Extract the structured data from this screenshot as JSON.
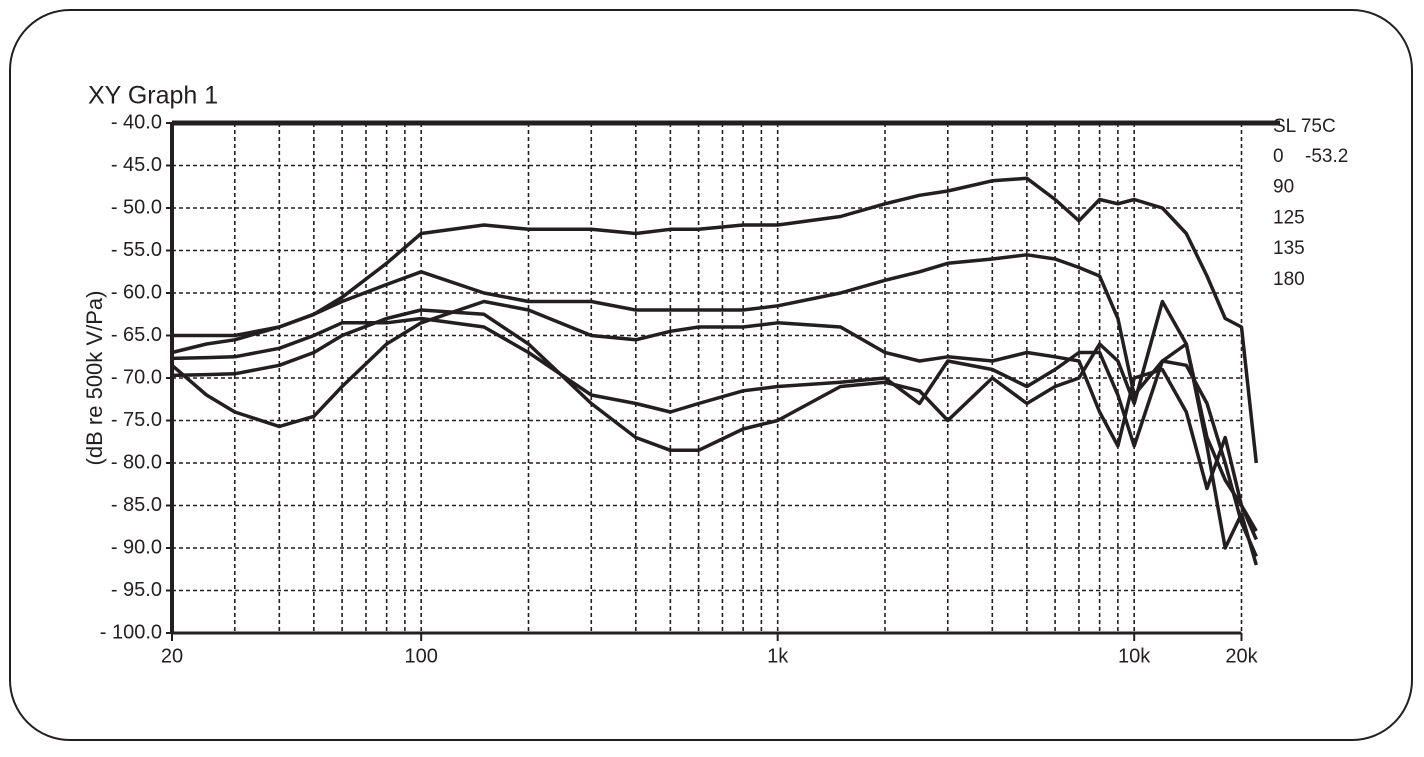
{
  "chart_data": {
    "type": "line",
    "title": "XY Graph 1",
    "y_label": "(dB re 500k V/Pa)",
    "legend_title": "SL 75C",
    "reference_level": -53.2,
    "x_scale": "log",
    "grid": true,
    "legend_position": "right",
    "xlim": [
      20,
      24000
    ],
    "ylim": [
      -100,
      -40
    ],
    "xticks": [
      20,
      100,
      {
        "value": 1000,
        "label": "1k"
      },
      {
        "value": 10000,
        "label": "10k"
      },
      {
        "value": 20000,
        "label": "20k"
      }
    ],
    "yticks": [
      {
        "value": -40,
        "label": "- 40.0"
      },
      {
        "value": -45,
        "label": "- 45.0"
      },
      {
        "value": -50,
        "label": "- 50.0"
      },
      {
        "value": -55,
        "label": "- 55.0"
      },
      {
        "value": -60,
        "label": "- 60.0"
      },
      {
        "value": -65,
        "label": "- 65.0"
      },
      {
        "value": -70,
        "label": "- 70.0"
      },
      {
        "value": -75,
        "label": "- 75.0"
      },
      {
        "value": -80,
        "label": "- 80.0"
      },
      {
        "value": -85,
        "label": "- 85.0"
      },
      {
        "value": -90,
        "label": "- 90.0"
      },
      {
        "value": -95,
        "label": "- 95.0"
      },
      {
        "value": -100,
        "label": "- 100.0"
      }
    ],
    "x": [
      20,
      25,
      30,
      40,
      50,
      60,
      80,
      100,
      150,
      200,
      300,
      400,
      500,
      600,
      800,
      1000,
      1500,
      2000,
      2500,
      3000,
      4000,
      5000,
      6000,
      7000,
      8000,
      9000,
      10000,
      12000,
      14000,
      16000,
      18000,
      20000,
      22000
    ],
    "series": [
      {
        "name": "0",
        "color": "#231f20",
        "values": [
          -67,
          -66,
          -65.5,
          -64,
          -62.5,
          -60.5,
          -56.5,
          -53,
          -52,
          -52.5,
          -52.5,
          -53,
          -52.5,
          -52.5,
          -52,
          -52,
          -51,
          -49.5,
          -48.5,
          -48,
          -46.8,
          -46.5,
          -49,
          -51.5,
          -49,
          -49.5,
          -49,
          -50,
          -53,
          -58,
          -63,
          -64,
          -80
        ]
      },
      {
        "name": "90",
        "color": "#231f20",
        "values": [
          -65,
          -65,
          -65,
          -64,
          -62.5,
          -61,
          -59,
          -57.5,
          -60,
          -61,
          -61,
          -62,
          -62,
          -62,
          -62,
          -61.5,
          -60,
          -58.5,
          -57.5,
          -56.5,
          -56,
          -55.5,
          -56,
          -57,
          -58,
          -63,
          -72,
          -68,
          -68.5,
          -73,
          -80,
          -87,
          -91
        ]
      },
      {
        "name": "125",
        "color": "#231f20",
        "values": [
          -68.5,
          -72,
          -74,
          -75.7,
          -74.5,
          -71,
          -66,
          -63.5,
          -61,
          -62,
          -65,
          -65.5,
          -64.5,
          -64,
          -64,
          -63.5,
          -64,
          -67,
          -68,
          -67.5,
          -68,
          -67,
          -67.5,
          -68,
          -74,
          -78,
          -70,
          -69,
          -74,
          -83,
          -77,
          -85,
          -88
        ]
      },
      {
        "name": "135",
        "color": "#231f20",
        "values": [
          -67.7,
          -67.6,
          -67.5,
          -66.5,
          -65,
          -63.5,
          -63.5,
          -63,
          -64,
          -67,
          -72,
          -73,
          -74,
          -73,
          -71.5,
          -71,
          -70.5,
          -70,
          -73,
          -68,
          -69,
          -71,
          -69,
          -67,
          -67,
          -72,
          -78,
          -68,
          -66,
          -77,
          -82,
          -85,
          -89
        ]
      },
      {
        "name": "180",
        "color": "#231f20",
        "values": [
          -69.7,
          -69.6,
          -69.5,
          -68.5,
          -67,
          -65,
          -63,
          -62,
          -62.5,
          -66,
          -73,
          -77,
          -78.5,
          -78.5,
          -76,
          -75,
          -71,
          -70.5,
          -71.5,
          -75,
          -70,
          -73,
          -71,
          -70,
          -66,
          -68,
          -73,
          -61,
          -66,
          -78,
          -90,
          -86,
          -92
        ]
      }
    ]
  }
}
